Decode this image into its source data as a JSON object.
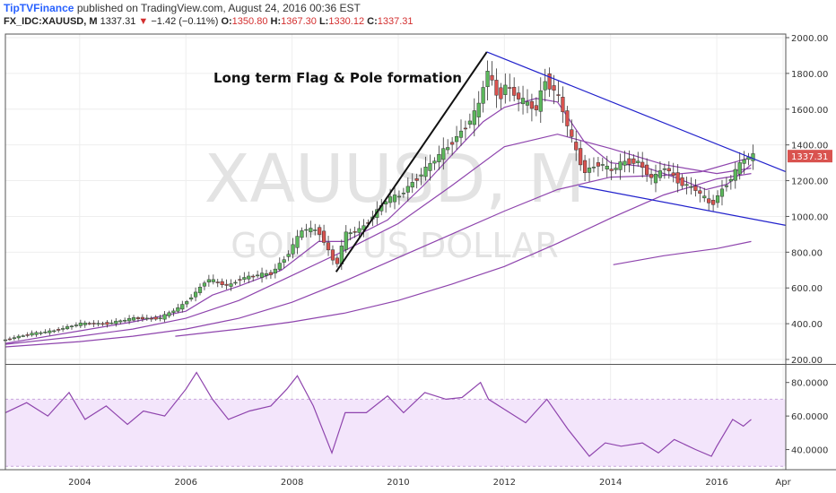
{
  "header": {
    "publisher": "TipTVFinance",
    "published_text": "published on TradingView.com, August 24, 2016 00:36 EST",
    "symbol": "FX_IDC:XAUUSD, M",
    "last": "1337.31",
    "change_arrow": "▼",
    "change": "−1.42 (−0.11%)",
    "o_label": "O:",
    "o_value": "1350.80",
    "h_label": "H:",
    "h_value": "1367.30",
    "l_label": "L:",
    "l_value": "1330.12",
    "c_label": "C:",
    "c_value": "1337.31"
  },
  "watermark": {
    "symbol": "XAUUSD, M",
    "name": "GOLD / US DOLLAR"
  },
  "colors": {
    "up": "#5cb85c",
    "down": "#d9534f",
    "ma": "#8e44ad",
    "trend": "#2222cc",
    "rsi_fill": "#f3e5fb",
    "rsi_line": "#8e44ad",
    "accent": "#2962ff"
  },
  "chart_data": [
    {
      "type": "candlestick",
      "title": "Long term Flag & Pole formation",
      "ylim": [
        180,
        2020
      ],
      "xlim": [
        2002.6,
        2017.3
      ],
      "y_ticks": [
        "2000.00",
        "1800.00",
        "1600.00",
        "1400.00",
        "1200.00",
        "1000.00",
        "800.00",
        "600.00",
        "400.00",
        "200.00"
      ],
      "y_tick_values": [
        2000,
        1800,
        1600,
        1400,
        1200,
        1000,
        800,
        600,
        400,
        200
      ],
      "x_ticks": [
        "2004",
        "2006",
        "2008",
        "2010",
        "2012",
        "2014",
        "2016",
        "Apr"
      ],
      "x_tick_values": [
        2004,
        2006,
        2008,
        2010,
        2012,
        2014,
        2016,
        2017.25
      ],
      "last_price_label": "1337.31",
      "price_path": [
        [
          2002.6,
          310
        ],
        [
          2003.0,
          340
        ],
        [
          2003.5,
          360
        ],
        [
          2004.0,
          400
        ],
        [
          2004.5,
          400
        ],
        [
          2005.0,
          430
        ],
        [
          2005.5,
          430
        ],
        [
          2005.9,
          495
        ],
        [
          2006.2,
          580
        ],
        [
          2006.4,
          650
        ],
        [
          2006.8,
          610
        ],
        [
          2007.0,
          650
        ],
        [
          2007.3,
          670
        ],
        [
          2007.6,
          680
        ],
        [
          2007.9,
          780
        ],
        [
          2008.2,
          930
        ],
        [
          2008.5,
          920
        ],
        [
          2008.83,
          720
        ],
        [
          2009.0,
          900
        ],
        [
          2009.3,
          930
        ],
        [
          2009.8,
          1100
        ],
        [
          2010.0,
          1110
        ],
        [
          2010.4,
          1230
        ],
        [
          2010.9,
          1380
        ],
        [
          2011.2,
          1480
        ],
        [
          2011.5,
          1600
        ],
        [
          2011.67,
          1820
        ],
        [
          2011.9,
          1650
        ],
        [
          2012.0,
          1740
        ],
        [
          2012.3,
          1650
        ],
        [
          2012.6,
          1600
        ],
        [
          2012.75,
          1770
        ],
        [
          2013.0,
          1680
        ],
        [
          2013.3,
          1400
        ],
        [
          2013.5,
          1250
        ],
        [
          2013.8,
          1300
        ],
        [
          2014.0,
          1250
        ],
        [
          2014.2,
          1300
        ],
        [
          2014.5,
          1310
        ],
        [
          2014.8,
          1200
        ],
        [
          2015.0,
          1280
        ],
        [
          2015.3,
          1190
        ],
        [
          2015.6,
          1150
        ],
        [
          2015.9,
          1060
        ],
        [
          2016.0,
          1110
        ],
        [
          2016.3,
          1230
        ],
        [
          2016.5,
          1320
        ],
        [
          2016.65,
          1337.31
        ]
      ],
      "ma_fast": [
        [
          2002.6,
          290
        ],
        [
          2004.0,
          360
        ],
        [
          2005.0,
          410
        ],
        [
          2006.0,
          470
        ],
        [
          2006.5,
          560
        ],
        [
          2007.0,
          610
        ],
        [
          2007.8,
          700
        ],
        [
          2008.5,
          860
        ],
        [
          2009.0,
          860
        ],
        [
          2009.8,
          980
        ],
        [
          2010.5,
          1180
        ],
        [
          2011.0,
          1340
        ],
        [
          2011.6,
          1530
        ],
        [
          2012.0,
          1610
        ],
        [
          2012.6,
          1660
        ],
        [
          2013.0,
          1640
        ],
        [
          2013.5,
          1420
        ],
        [
          2014.0,
          1300
        ],
        [
          2014.6,
          1280
        ],
        [
          2015.2,
          1220
        ],
        [
          2015.8,
          1150
        ],
        [
          2016.2,
          1180
        ],
        [
          2016.65,
          1290
        ]
      ],
      "ma_mid": [
        [
          2002.6,
          285
        ],
        [
          2004.0,
          330
        ],
        [
          2005.0,
          370
        ],
        [
          2006.0,
          430
        ],
        [
          2007.0,
          530
        ],
        [
          2008.0,
          670
        ],
        [
          2009.0,
          810
        ],
        [
          2010.0,
          960
        ],
        [
          2011.0,
          1170
        ],
        [
          2012.0,
          1390
        ],
        [
          2013.0,
          1460
        ],
        [
          2014.0,
          1380
        ],
        [
          2015.0,
          1290
        ],
        [
          2016.0,
          1240
        ],
        [
          2016.65,
          1270
        ]
      ],
      "ma_long": [
        [
          2002.6,
          270
        ],
        [
          2004.0,
          300
        ],
        [
          2005.0,
          330
        ],
        [
          2006.0,
          370
        ],
        [
          2007.0,
          430
        ],
        [
          2008.0,
          520
        ],
        [
          2009.0,
          640
        ],
        [
          2010.0,
          770
        ],
        [
          2011.0,
          900
        ],
        [
          2012.0,
          1030
        ],
        [
          2013.0,
          1150
        ],
        [
          2014.0,
          1220
        ],
        [
          2015.0,
          1230
        ],
        [
          2015.7,
          1250
        ],
        [
          2016.65,
          1330
        ]
      ],
      "ma_slow": [
        [
          2005.8,
          330
        ],
        [
          2007.0,
          370
        ],
        [
          2008.0,
          410
        ],
        [
          2009.0,
          460
        ],
        [
          2010.0,
          530
        ],
        [
          2011.0,
          620
        ],
        [
          2012.0,
          720
        ],
        [
          2013.0,
          850
        ],
        [
          2014.0,
          990
        ],
        [
          2015.0,
          1120
        ],
        [
          2016.0,
          1210
        ],
        [
          2016.65,
          1240
        ]
      ],
      "ma_tail": [
        [
          2014.05,
          730
        ],
        [
          2015.0,
          780
        ],
        [
          2016.0,
          820
        ],
        [
          2016.65,
          860
        ]
      ],
      "pole_line": [
        [
          2008.83,
          690
        ],
        [
          2011.67,
          1920
        ]
      ],
      "flag_upper": [
        [
          2011.67,
          1920
        ],
        [
          2017.3,
          1250
        ]
      ],
      "flag_lower": [
        [
          2013.4,
          1170
        ],
        [
          2017.3,
          950
        ]
      ]
    },
    {
      "type": "line",
      "ylim": [
        28,
        90
      ],
      "xlim": [
        2002.6,
        2017.3
      ],
      "y_ticks": [
        "80.0000",
        "60.0000",
        "40.0000"
      ],
      "y_tick_values": [
        80,
        60,
        40
      ],
      "band": [
        30,
        70
      ],
      "rsi": [
        [
          2002.6,
          62
        ],
        [
          2003.0,
          68
        ],
        [
          2003.4,
          60
        ],
        [
          2003.8,
          74
        ],
        [
          2004.1,
          58
        ],
        [
          2004.5,
          66
        ],
        [
          2004.9,
          55
        ],
        [
          2005.2,
          63
        ],
        [
          2005.6,
          60
        ],
        [
          2006.0,
          76
        ],
        [
          2006.2,
          86
        ],
        [
          2006.5,
          70
        ],
        [
          2006.8,
          58
        ],
        [
          2007.2,
          63
        ],
        [
          2007.6,
          66
        ],
        [
          2007.9,
          76
        ],
        [
          2008.1,
          84
        ],
        [
          2008.4,
          66
        ],
        [
          2008.75,
          38
        ],
        [
          2009.0,
          62
        ],
        [
          2009.4,
          62
        ],
        [
          2009.8,
          72
        ],
        [
          2010.1,
          62
        ],
        [
          2010.5,
          74
        ],
        [
          2010.9,
          70
        ],
        [
          2011.2,
          71
        ],
        [
          2011.55,
          80
        ],
        [
          2011.7,
          70
        ],
        [
          2012.0,
          64
        ],
        [
          2012.4,
          56
        ],
        [
          2012.8,
          70
        ],
        [
          2013.2,
          52
        ],
        [
          2013.6,
          36
        ],
        [
          2013.9,
          44
        ],
        [
          2014.2,
          42
        ],
        [
          2014.6,
          44
        ],
        [
          2014.9,
          38
        ],
        [
          2015.2,
          46
        ],
        [
          2015.6,
          40
        ],
        [
          2015.9,
          36
        ],
        [
          2016.0,
          42
        ],
        [
          2016.3,
          58
        ],
        [
          2016.5,
          54
        ],
        [
          2016.65,
          58
        ]
      ]
    }
  ]
}
